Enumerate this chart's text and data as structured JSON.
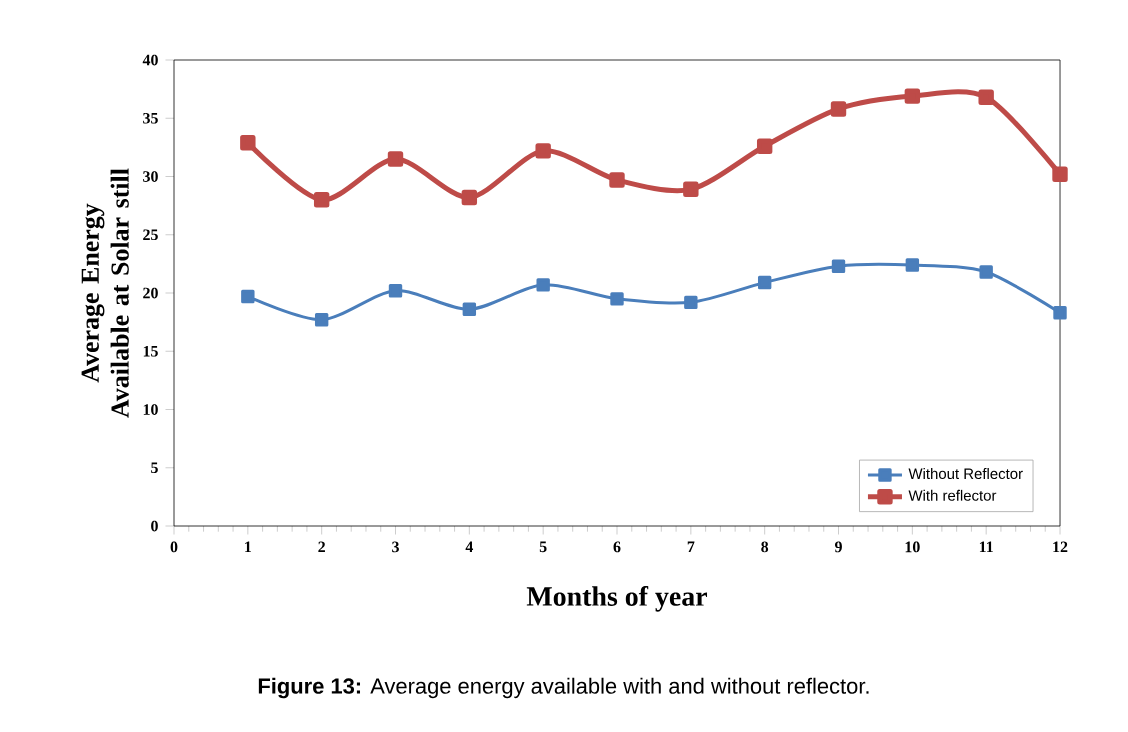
{
  "chart_data": {
    "type": "line",
    "xlabel": "Months of year",
    "ylabel": "Average Energy Available at Solar still",
    "x": [
      1,
      2,
      3,
      4,
      5,
      6,
      7,
      8,
      9,
      10,
      11,
      12
    ],
    "series": [
      {
        "name": "Without Reflector",
        "color": "#4a7ebb",
        "values": [
          19.7,
          17.7,
          20.2,
          18.6,
          20.7,
          19.5,
          19.2,
          20.9,
          22.3,
          22.4,
          21.8,
          18.3
        ]
      },
      {
        "name": "With reflector",
        "color": "#be4b48",
        "values": [
          32.9,
          28.0,
          31.5,
          28.2,
          32.2,
          29.7,
          28.9,
          32.6,
          35.8,
          36.9,
          36.8,
          30.2
        ]
      }
    ],
    "xlim": [
      0,
      12
    ],
    "xticks": [
      0,
      1,
      2,
      3,
      4,
      5,
      6,
      7,
      8,
      9,
      10,
      11,
      12
    ],
    "ylim": [
      0,
      40
    ],
    "yticks": [
      0,
      5,
      10,
      15,
      20,
      25,
      30,
      35,
      40
    ],
    "grid": false,
    "legend": "bottom right",
    "marker": "square",
    "line_style": "solid",
    "annotations": [
      "**Figure 13:** Average energy available with and without reflector."
    ]
  }
}
